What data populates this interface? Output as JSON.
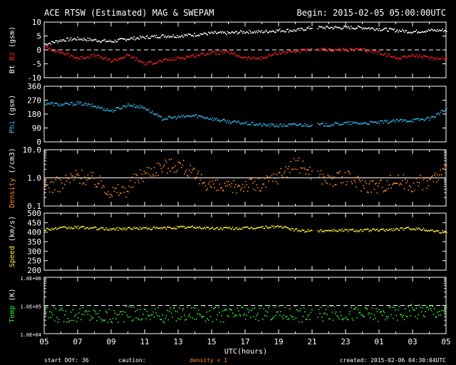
{
  "header": {
    "title": "ACE RTSW (Estimated) MAG & SWEPAM",
    "begin": "Begin: 2015-02-05 05:00:00UTC"
  },
  "footer": {
    "start_doy": "start DOY:  36",
    "caution": "caution:",
    "density_note": "density < 1",
    "created": "created: 2015-02-06 04:30:04UTC"
  },
  "colors": {
    "background": "#000000",
    "axes": "#ffffff",
    "bt": "#ffffff",
    "bz": "#ff2020",
    "phi": "#33bbee",
    "density": "#ff8c1a",
    "speed": "#ffee33",
    "temp": "#33ee33"
  },
  "chart_data": [
    {
      "id": "mag",
      "type": "line",
      "ylabel_parts": [
        {
          "text": "Bt",
          "color": "#ffffff"
        },
        {
          "text": " Bz",
          "color": "#ff2020"
        },
        {
          "text": " (gsm)",
          "color": "#ffffff"
        }
      ],
      "ylim": [
        -10,
        10
      ],
      "yticks": [
        {
          "v": 10,
          "l": "10"
        },
        {
          "v": 5,
          "l": "5"
        },
        {
          "v": 0,
          "l": "0"
        },
        {
          "v": -5,
          "l": "-5"
        },
        {
          "v": -10,
          "l": "-10"
        }
      ],
      "refline": {
        "v": 0,
        "dashed": true
      },
      "series": [
        {
          "name": "Bt",
          "color": "#ffffff",
          "x": [
            0,
            1,
            2,
            3,
            4,
            5,
            6,
            7,
            8,
            9,
            10,
            11,
            12,
            13,
            14,
            15,
            16,
            17,
            18,
            19,
            20,
            21,
            22,
            23,
            24
          ],
          "y": [
            2,
            3.5,
            4,
            3.5,
            3,
            4,
            4.5,
            5,
            5,
            5.5,
            6,
            6,
            6.5,
            6.5,
            7,
            7,
            8,
            8,
            8,
            8,
            7.5,
            7,
            6.5,
            7,
            7
          ]
        },
        {
          "name": "Bz",
          "color": "#ff2020",
          "x": [
            0,
            1,
            2,
            3,
            4,
            5,
            6,
            7,
            8,
            9,
            10,
            11,
            12,
            13,
            14,
            15,
            16,
            17,
            18,
            19,
            20,
            21,
            22,
            23,
            24
          ],
          "y": [
            1,
            -1,
            -3,
            -2,
            -4,
            -2,
            -5,
            -4,
            -3,
            -2,
            -1,
            -1,
            -3,
            -3,
            -1,
            -0.5,
            0,
            0,
            0,
            0,
            -1,
            -3,
            -2,
            -3,
            -3
          ]
        }
      ]
    },
    {
      "id": "phi",
      "type": "scatter",
      "ylabel_parts": [
        {
          "text": "Phi",
          "color": "#33bbee"
        },
        {
          "text": " (gsm)",
          "color": "#ffffff"
        }
      ],
      "ylim": [
        0,
        360
      ],
      "yticks": [
        {
          "v": 360,
          "l": "360"
        },
        {
          "v": 270,
          "l": "270"
        },
        {
          "v": 180,
          "l": "180"
        },
        {
          "v": 90,
          "l": "90"
        },
        {
          "v": 0,
          "l": "0"
        }
      ],
      "series": [
        {
          "name": "Phi",
          "color": "#33bbee",
          "x": [
            0,
            1,
            2,
            3,
            4,
            5,
            6,
            7,
            8,
            9,
            10,
            11,
            12,
            13,
            14,
            15,
            16,
            17,
            18,
            19,
            20,
            21,
            22,
            23,
            24
          ],
          "y": [
            250,
            240,
            250,
            230,
            200,
            240,
            220,
            150,
            160,
            170,
            150,
            130,
            120,
            110,
            105,
            110,
            110,
            110,
            120,
            120,
            125,
            135,
            140,
            150,
            210
          ]
        }
      ]
    },
    {
      "id": "density",
      "type": "scatter",
      "log": true,
      "ylabel_parts": [
        {
          "text": "Density",
          "color": "#ff8c1a"
        },
        {
          "text": " (/cm3)",
          "color": "#ffffff"
        }
      ],
      "ylim": [
        0.1,
        10
      ],
      "yticks": [
        {
          "v": 10,
          "l": "10.0"
        },
        {
          "v": 1,
          "l": "1.0"
        },
        {
          "v": 0.1,
          "l": "0.1"
        }
      ],
      "refline": {
        "v": 1,
        "dashed": false
      },
      "series": [
        {
          "name": "Density",
          "color": "#ff8c1a",
          "x": [
            0,
            1,
            2,
            3,
            4,
            5,
            6,
            7,
            8,
            9,
            10,
            11,
            12,
            13,
            14,
            15,
            16,
            17,
            18,
            19,
            20,
            21,
            22,
            23,
            24
          ],
          "y": [
            0.5,
            0.6,
            1.2,
            0.8,
            0.3,
            0.4,
            1.5,
            2.5,
            3.0,
            1.0,
            0.5,
            0.4,
            0.6,
            0.5,
            1.2,
            3.0,
            1.5,
            0.8,
            1.0,
            0.6,
            0.5,
            0.8,
            0.6,
            0.8,
            1.5
          ]
        }
      ]
    },
    {
      "id": "speed",
      "type": "scatter",
      "ylabel_parts": [
        {
          "text": "Speed",
          "color": "#ffee33"
        },
        {
          "text": " (km/s)",
          "color": "#ffffff"
        }
      ],
      "ylim": [
        200,
        500
      ],
      "yticks": [
        {
          "v": 500,
          "l": "500"
        },
        {
          "v": 450,
          "l": "450"
        },
        {
          "v": 400,
          "l": "400"
        },
        {
          "v": 350,
          "l": "350"
        },
        {
          "v": 300,
          "l": "300"
        },
        {
          "v": 250,
          "l": "250"
        },
        {
          "v": 200,
          "l": "200"
        }
      ],
      "series": [
        {
          "name": "Speed",
          "color": "#ffee33",
          "x": [
            0,
            1,
            2,
            3,
            4,
            5,
            6,
            7,
            8,
            9,
            10,
            11,
            12,
            13,
            14,
            15,
            16,
            17,
            18,
            19,
            20,
            21,
            22,
            23,
            24
          ],
          "y": [
            415,
            420,
            425,
            420,
            415,
            420,
            420,
            420,
            425,
            425,
            420,
            420,
            420,
            425,
            430,
            410,
            405,
            410,
            410,
            410,
            410,
            415,
            420,
            410,
            400
          ]
        }
      ]
    },
    {
      "id": "temp",
      "type": "scatter",
      "log": true,
      "ylabel_parts": [
        {
          "text": "Temp",
          "color": "#33ee33"
        },
        {
          "text": " (K)",
          "color": "#ffffff"
        }
      ],
      "ylim": [
        10000,
        1000000
      ],
      "yticks": [
        {
          "v": 1000000,
          "l": "1.0E+06"
        },
        {
          "v": 100000,
          "l": "1.0E+05"
        },
        {
          "v": 10000,
          "l": "1.0E+04"
        }
      ],
      "refline": {
        "v": 100000,
        "dashed": true
      },
      "series": [
        {
          "name": "Temp",
          "color": "#33ee33",
          "x": [
            0,
            1,
            2,
            3,
            4,
            5,
            6,
            7,
            8,
            9,
            10,
            11,
            12,
            13,
            14,
            15,
            16,
            17,
            18,
            19,
            20,
            21,
            22,
            23,
            24
          ],
          "y": [
            50000,
            45000,
            50000,
            45000,
            40000,
            50000,
            50000,
            45000,
            50000,
            55000,
            50000,
            45000,
            50000,
            55000,
            55000,
            50000,
            45000,
            50000,
            55000,
            50000,
            50000,
            55000,
            60000,
            70000,
            60000
          ]
        }
      ]
    }
  ],
  "xaxis": {
    "label": "UTC(hours)",
    "range_hours": [
      0,
      24
    ],
    "gaps": [
      [
        16.0,
        16.3
      ]
    ],
    "ticks": [
      {
        "h": 0,
        "l": "05"
      },
      {
        "h": 2,
        "l": "07"
      },
      {
        "h": 4,
        "l": "09"
      },
      {
        "h": 6,
        "l": "11"
      },
      {
        "h": 8,
        "l": "13"
      },
      {
        "h": 10,
        "l": "15"
      },
      {
        "h": 12,
        "l": "17"
      },
      {
        "h": 14,
        "l": "19"
      },
      {
        "h": 16,
        "l": "21"
      },
      {
        "h": 18,
        "l": "23"
      },
      {
        "h": 20,
        "l": "01"
      },
      {
        "h": 22,
        "l": "03"
      },
      {
        "h": 24,
        "l": "05"
      }
    ]
  }
}
